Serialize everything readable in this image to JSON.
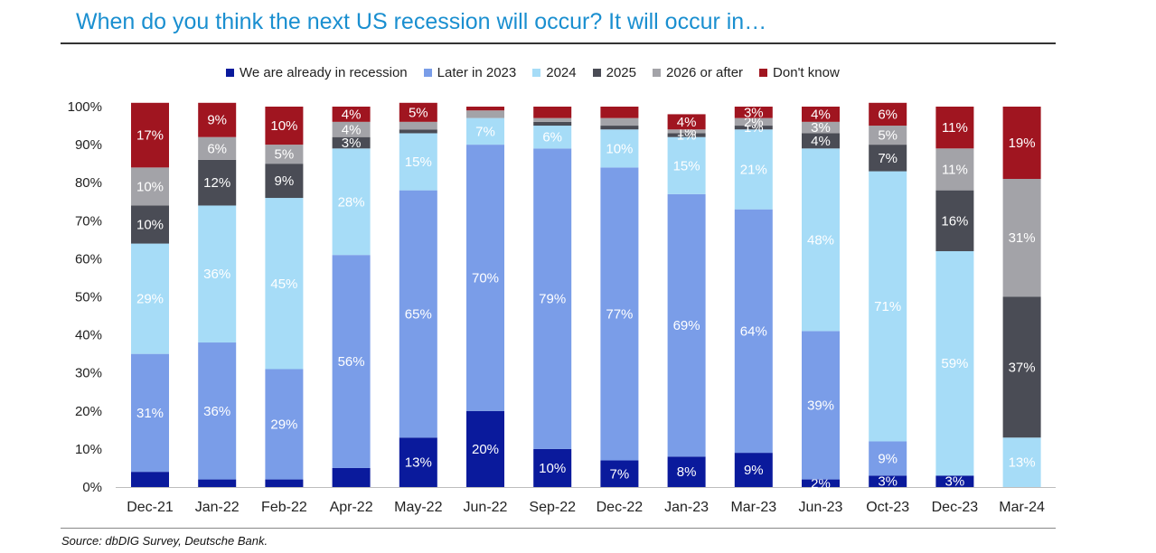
{
  "chart_data": {
    "type": "bar",
    "stacked": true,
    "title": "When do you think the next US recession will occur? It will occur in…",
    "source": "Source: dbDIG Survey, Deutsche Bank.",
    "ylim": [
      0,
      100
    ],
    "yticks": [
      "0%",
      "10%",
      "20%",
      "30%",
      "40%",
      "50%",
      "60%",
      "70%",
      "80%",
      "90%",
      "100%"
    ],
    "ytick_values": [
      0,
      10,
      20,
      30,
      40,
      50,
      60,
      70,
      80,
      90,
      100
    ],
    "categories": [
      "Dec-21",
      "Jan-22",
      "Feb-22",
      "Apr-22",
      "May-22",
      "Jun-22",
      "Sep-22",
      "Dec-22",
      "Jan-23",
      "Mar-23",
      "Jun-23",
      "Oct-23",
      "Dec-23",
      "Mar-24"
    ],
    "series": [
      {
        "name": "We are already in recession",
        "color": "#0a1a9c",
        "label_color": "#ffffff",
        "values": [
          4,
          2,
          2,
          5,
          13,
          20,
          10,
          7,
          8,
          9,
          2,
          3,
          3,
          0
        ],
        "labels": [
          "",
          "",
          "",
          "",
          "13%",
          "20%",
          "10%",
          "7%",
          "8%",
          "9%",
          "2%",
          "3%",
          "3%",
          ""
        ]
      },
      {
        "name": "Later in 2023",
        "color": "#7a9de8",
        "label_color": "#ffffff",
        "values": [
          31,
          36,
          29,
          56,
          65,
          70,
          79,
          77,
          69,
          64,
          39,
          9,
          0,
          0
        ],
        "labels": [
          "31%",
          "36%",
          "29%",
          "56%",
          "65%",
          "70%",
          "79%",
          "77%",
          "69%",
          "64%",
          "39%",
          "9%",
          "",
          ""
        ]
      },
      {
        "name": "2024",
        "color": "#a6dcf7",
        "label_color": "#ffffff",
        "values": [
          29,
          36,
          45,
          28,
          15,
          7,
          6,
          10,
          15,
          21,
          48,
          71,
          59,
          13
        ],
        "labels": [
          "29%",
          "36%",
          "45%",
          "28%",
          "15%",
          "7%",
          "6%",
          "10%",
          "15%",
          "21%",
          "48%",
          "71%",
          "59%",
          "13%"
        ]
      },
      {
        "name": "2025",
        "color": "#4a4c55",
        "label_color": "#ffffff",
        "values": [
          10,
          12,
          9,
          3,
          1,
          0,
          1,
          1,
          1,
          1,
          4,
          7,
          16,
          37
        ],
        "labels": [
          "10%",
          "12%",
          "9%",
          "3%",
          "",
          "",
          "",
          "",
          "1%",
          "1%",
          "4%",
          "7%",
          "16%",
          "37%"
        ]
      },
      {
        "name": "2026 or after",
        "color": "#a3a3a8",
        "label_color": "#ffffff",
        "values": [
          10,
          6,
          5,
          4,
          2,
          2,
          1,
          2,
          1,
          2,
          3,
          5,
          11,
          31
        ],
        "labels": [
          "10%",
          "6%",
          "5%",
          "4%",
          "",
          "",
          "",
          "",
          "1%",
          "2%",
          "3%",
          "5%",
          "11%",
          "31%"
        ]
      },
      {
        "name": "Don't know",
        "color": "#a01520",
        "label_color": "#ffffff",
        "values": [
          17,
          9,
          10,
          4,
          5,
          1,
          3,
          3,
          4,
          3,
          4,
          6,
          11,
          19
        ],
        "labels": [
          "17%",
          "9%",
          "10%",
          "4%",
          "5%",
          "",
          "",
          "",
          "4%",
          "3%",
          "4%",
          "6%",
          "11%",
          "19%"
        ]
      }
    ]
  }
}
